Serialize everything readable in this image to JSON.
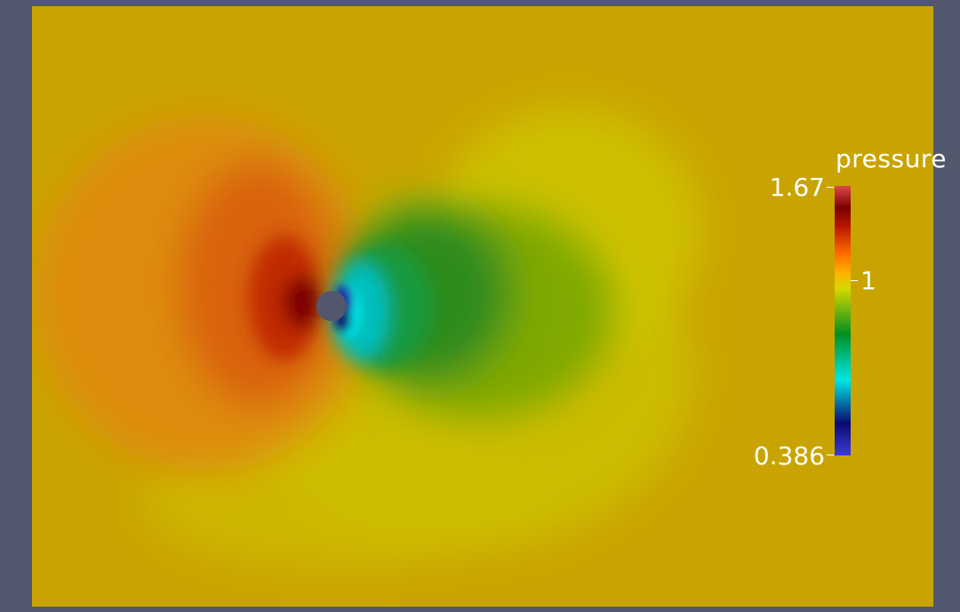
{
  "view": {
    "background_color": "#52576e",
    "field_type": "pressure contour around a cylinder"
  },
  "legend": {
    "title": "pressure",
    "max_label": "1.67",
    "mid_label": "1",
    "min_label": "0.386",
    "colormap": [
      "#3b3bd8",
      "#0a0a70",
      "#00e0e0",
      "#008a1c",
      "#d7d700",
      "#ff8a00",
      "#d82a00",
      "#8a0000",
      "#d84040"
    ]
  }
}
